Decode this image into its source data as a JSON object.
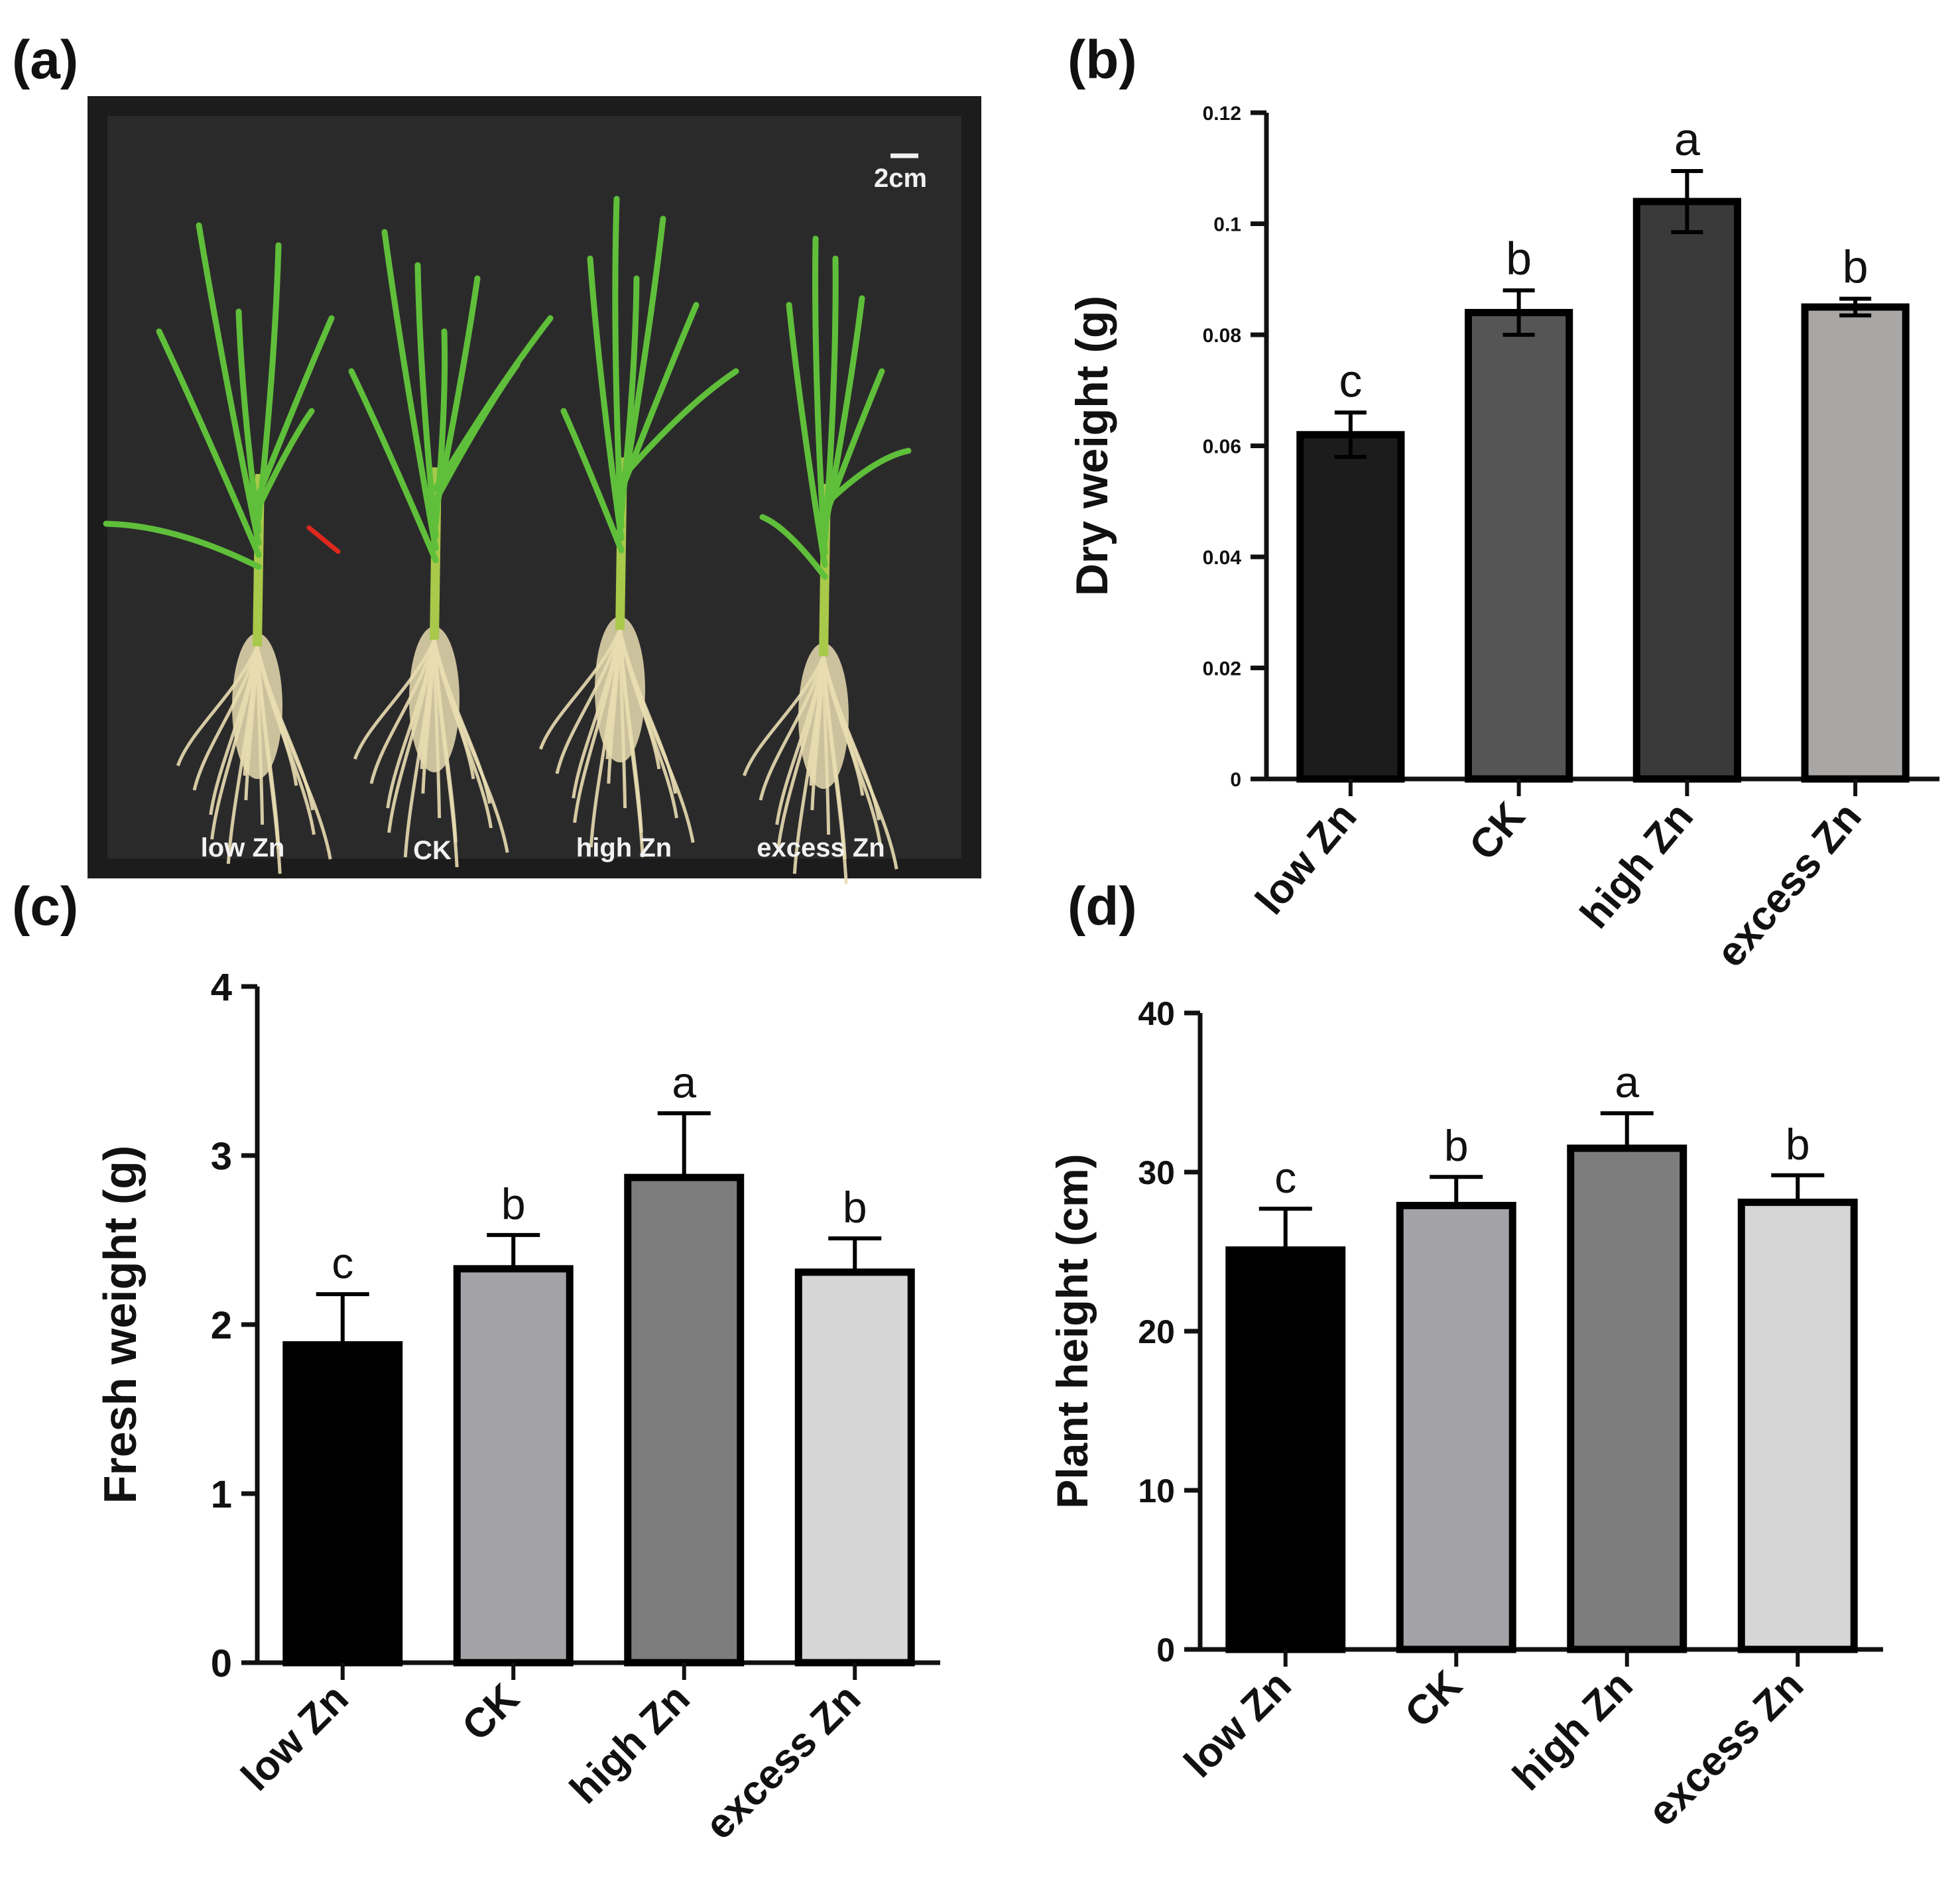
{
  "panels": {
    "a": "(a)",
    "b": "(b)",
    "c": "(c)",
    "d": "(d)"
  },
  "photo": {
    "scale_bar": "2cm",
    "labels": [
      "low Zn",
      "CK",
      "high Zn",
      "excess Zn"
    ],
    "background_color": "#2b2a2b",
    "leaf_color": "#5fbf3a",
    "root_color": "#e8dcb0",
    "arrow_color": "#e0281e"
  },
  "chart_data": [
    {
      "panel": "b",
      "type": "bar",
      "categories": [
        "low Zn",
        "CK",
        "high Zn",
        "excess Zn"
      ],
      "values": [
        0.062,
        0.084,
        0.104,
        0.085
      ],
      "errors": [
        0.004,
        0.004,
        0.0055,
        0.0015
      ],
      "significance": [
        "c",
        "b",
        "a",
        "b"
      ],
      "colors": [
        "#1c1c1c",
        "#555555",
        "#3a3a3a",
        "#a9a6a6"
      ],
      "ylabel": "Dry weight (g)",
      "xlabel": "",
      "ylim": [
        0,
        0.12
      ],
      "ticks": [
        0,
        0.02,
        0.04,
        0.06,
        0.08,
        0.1,
        0.12
      ],
      "tick_labels": [
        "0",
        "0.02",
        "0.04",
        "0.06",
        "0.08",
        "0.1",
        "0.12"
      ],
      "grid": false
    },
    {
      "panel": "c",
      "type": "bar",
      "categories": [
        "low Zn",
        "CK",
        "high Zn",
        "excess Zn"
      ],
      "values": [
        1.88,
        2.33,
        2.87,
        2.31
      ],
      "errors": [
        0.3,
        0.2,
        0.38,
        0.2
      ],
      "significance": [
        "c",
        "b",
        "a",
        "b"
      ],
      "colors": [
        "#000000",
        "#a3a2a6",
        "#7d7d7d",
        "#d6d6d6"
      ],
      "ylabel": "Fresh weight (g)",
      "xlabel": "",
      "ylim": [
        0,
        4
      ],
      "ticks": [
        0,
        1,
        2,
        3,
        4
      ],
      "tick_labels": [
        "0",
        "1",
        "2",
        "3",
        "4"
      ],
      "grid": false
    },
    {
      "panel": "d",
      "type": "bar",
      "categories": [
        "low Zn",
        "CK",
        "high Zn",
        "excess Zn"
      ],
      "values": [
        25.1,
        27.9,
        31.5,
        28.1
      ],
      "errors": [
        2.6,
        1.8,
        2.2,
        1.7
      ],
      "significance": [
        "c",
        "b",
        "a",
        "b"
      ],
      "colors": [
        "#000000",
        "#a3a2a6",
        "#7d7d7d",
        "#d6d6d6"
      ],
      "ylabel": "Plant height (cm)",
      "xlabel": "",
      "ylim": [
        0,
        40
      ],
      "ticks": [
        0,
        10,
        20,
        30,
        40
      ],
      "tick_labels": [
        "0",
        "10",
        "20",
        "30",
        "40"
      ],
      "grid": false
    }
  ]
}
